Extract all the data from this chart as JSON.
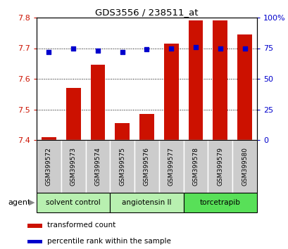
{
  "title": "GDS3556 / 238511_at",
  "samples": [
    "GSM399572",
    "GSM399573",
    "GSM399574",
    "GSM399575",
    "GSM399576",
    "GSM399577",
    "GSM399578",
    "GSM399579",
    "GSM399580"
  ],
  "red_values": [
    7.41,
    7.57,
    7.645,
    7.455,
    7.485,
    7.715,
    7.79,
    7.79,
    7.745
  ],
  "blue_values": [
    72,
    75,
    73,
    72,
    74,
    75,
    76,
    75,
    75
  ],
  "group_ranges": [
    [
      0,
      2
    ],
    [
      3,
      5
    ],
    [
      6,
      8
    ]
  ],
  "group_labels": [
    "solvent control",
    "angiotensin II",
    "torcetrapib"
  ],
  "group_colors": [
    "#b8f0b0",
    "#b8f0b0",
    "#58e058"
  ],
  "ylim_left": [
    7.4,
    7.8
  ],
  "ylim_right": [
    0,
    100
  ],
  "yticks_left": [
    7.4,
    7.5,
    7.6,
    7.7,
    7.8
  ],
  "yticks_right": [
    0,
    25,
    50,
    75,
    100
  ],
  "bar_color": "#cc1100",
  "dot_color": "#0000cc",
  "sample_bg_color": "#cccccc",
  "agent_label": "agent",
  "legend_red": "transformed count",
  "legend_blue": "percentile rank within the sample"
}
